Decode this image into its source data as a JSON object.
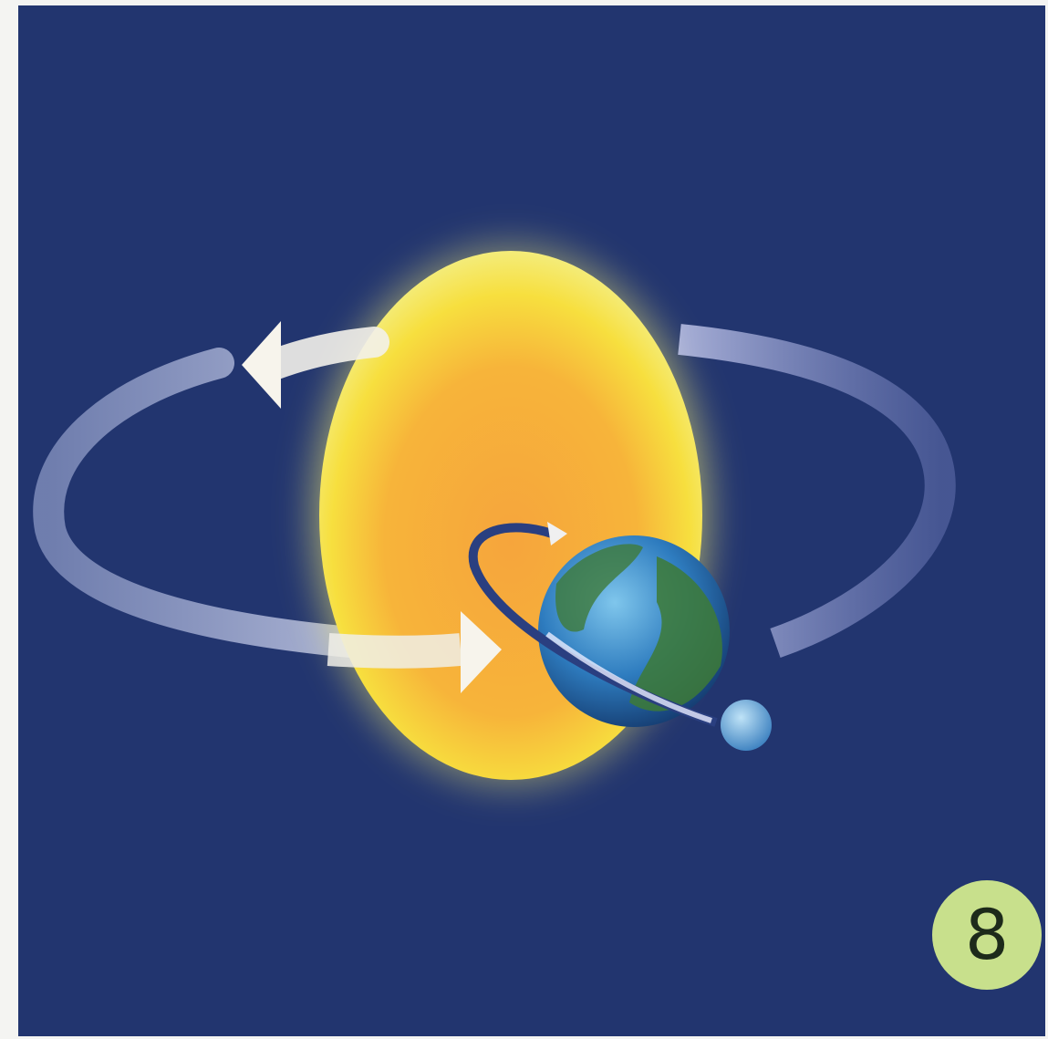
{
  "badge": {
    "label": "8"
  }
}
